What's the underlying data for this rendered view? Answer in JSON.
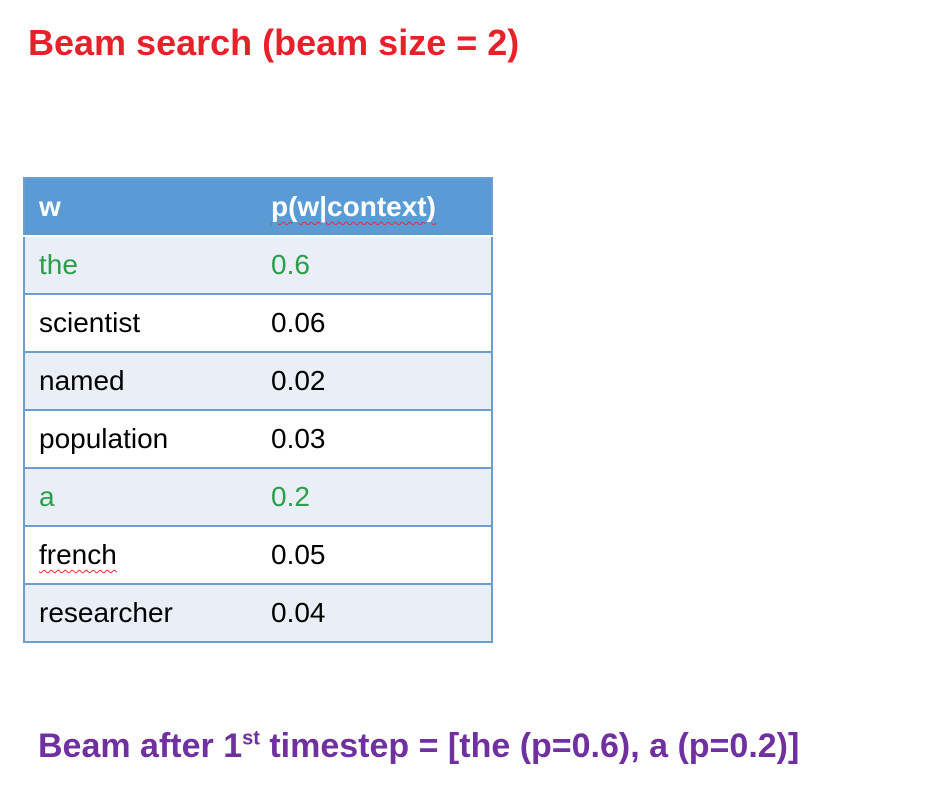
{
  "title": {
    "text": "Beam search (beam size = 2)",
    "color": "#e8202a"
  },
  "table": {
    "header": {
      "word": "w",
      "prob": "p(w|context)"
    },
    "rows": [
      {
        "word": "the",
        "prob": "0.6",
        "selected": true
      },
      {
        "word": "scientist",
        "prob": "0.06",
        "selected": false
      },
      {
        "word": "named",
        "prob": "0.02",
        "selected": false
      },
      {
        "word": "population",
        "prob": "0.03",
        "selected": false
      },
      {
        "word": "a",
        "prob": "0.2",
        "selected": true
      },
      {
        "word": "french",
        "prob": "0.05",
        "selected": false
      },
      {
        "word": "researcher",
        "prob": "0.04",
        "selected": false
      }
    ],
    "header_color": "#5b9bd5",
    "selected_color": "#2a9e4a",
    "text_color": "#000000"
  },
  "footer": {
    "prefix": "Beam after 1",
    "superscript": "st",
    "suffix": " timestep = [the (p=0.6), a (p=0.2)]",
    "color": "#7030a0"
  }
}
